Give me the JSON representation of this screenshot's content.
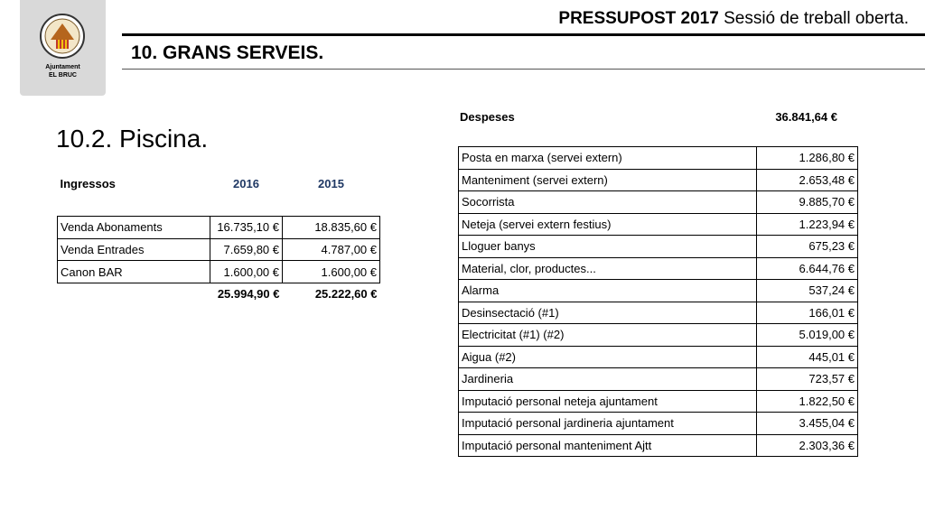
{
  "logo": {
    "line1": "Ajuntament",
    "line2": "EL BRUC"
  },
  "header": {
    "title_bold": "PRESSUPOST 2017",
    "title_rest": "Sessió de treball oberta.",
    "section": "10. GRANS SERVEIS."
  },
  "title": "10.2. Piscina.",
  "income": {
    "columns": [
      "Ingressos",
      "2016",
      "2015"
    ],
    "rows": [
      [
        "Venda Abonaments",
        "16.735,10 €",
        "18.835,60 €"
      ],
      [
        "Venda Entrades",
        "7.659,80 €",
        "4.787,00 €"
      ],
      [
        "Canon BAR",
        "1.600,00 €",
        "1.600,00 €"
      ]
    ],
    "totals": [
      "25.994,90 €",
      "25.222,60 €"
    ]
  },
  "expenses": {
    "label": "Despeses",
    "total": "36.841,64 €",
    "rows": [
      [
        "Posta en marxa (servei extern)",
        "1.286,80 €"
      ],
      [
        "Manteniment (servei extern)",
        "2.653,48 €"
      ],
      [
        "Socorrista",
        "9.885,70 €"
      ],
      [
        "Neteja (servei extern festius)",
        "1.223,94 €"
      ],
      [
        "Lloguer banys",
        "675,23 €"
      ],
      [
        "Material, clor, productes...",
        "6.644,76 €"
      ],
      [
        "Alarma",
        "537,24 €"
      ],
      [
        "Desinsectació (#1)",
        "166,01 €"
      ],
      [
        "Electricitat (#1) (#2)",
        "5.019,00 €"
      ],
      [
        "Aigua (#2)",
        "445,01 €"
      ],
      [
        "Jardineria",
        "723,57 €"
      ],
      [
        "Imputació personal neteja ajuntament",
        "1.822,50 €"
      ],
      [
        "Imputació personal jardineria ajuntament",
        "3.455,04 €"
      ],
      [
        "Imputació personal manteniment Ajtt",
        "2.303,36 €"
      ]
    ]
  }
}
